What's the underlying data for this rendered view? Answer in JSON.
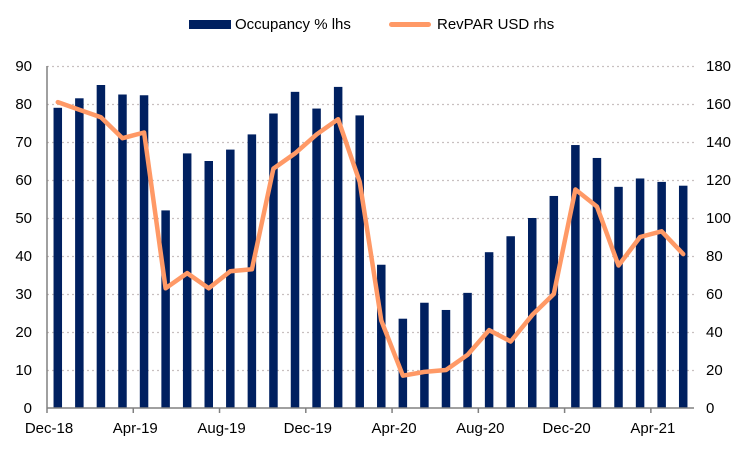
{
  "chart_data": {
    "type": "bar+line",
    "title": "",
    "legend_position": "top-center",
    "categories": [
      "Dec-18",
      "Jan-19",
      "Feb-19",
      "Mar-19",
      "Apr-19",
      "May-19",
      "Jun-19",
      "Jul-19",
      "Aug-19",
      "Sep-19",
      "Oct-19",
      "Nov-19",
      "Dec-19",
      "Jan-20",
      "Feb-20",
      "Mar-20",
      "Apr-20",
      "May-20",
      "Jun-20",
      "Jul-20",
      "Aug-20",
      "Sep-20",
      "Oct-20",
      "Nov-20",
      "Dec-20",
      "Jan-21",
      "Feb-21",
      "Mar-21",
      "Apr-21",
      "May-21"
    ],
    "x_tick_labels": [
      "Dec-18",
      "Apr-19",
      "Aug-19",
      "Dec-19",
      "Apr-20",
      "Aug-20",
      "Dec-20",
      "Apr-21"
    ],
    "series": [
      {
        "name": "Occupancy % lhs",
        "type": "bar",
        "axis": "left",
        "color": "#002060",
        "values": [
          79,
          81.5,
          85,
          82.5,
          82.3,
          52,
          67,
          65,
          68,
          72,
          77.5,
          83.2,
          78.8,
          84.5,
          77,
          37.7,
          23.5,
          27.7,
          25.8,
          30.3,
          41,
          45.2,
          50,
          55.8,
          69.2,
          65.8,
          58.2,
          60.4,
          59.5,
          58.5
        ]
      },
      {
        "name": "RevPAR USD rhs",
        "type": "line",
        "axis": "right",
        "color": "#FF9966",
        "values": [
          161,
          157,
          153,
          142,
          145,
          63,
          71,
          63,
          72,
          73,
          126,
          134,
          144,
          152,
          119,
          46,
          17,
          19,
          20,
          28,
          41,
          35,
          49,
          60,
          115,
          106,
          75,
          90,
          93,
          81
        ]
      }
    ],
    "y_left": {
      "label": "",
      "min": 0,
      "max": 90,
      "ticks": [
        0,
        10,
        20,
        30,
        40,
        50,
        60,
        70,
        80,
        90
      ]
    },
    "y_right": {
      "label": "",
      "min": 0,
      "max": 180,
      "ticks": [
        0,
        20,
        40,
        60,
        80,
        100,
        120,
        140,
        160,
        180
      ]
    },
    "grid": true
  },
  "legend": {
    "bar_label": "Occupancy % lhs",
    "line_label": "RevPAR USD rhs"
  }
}
